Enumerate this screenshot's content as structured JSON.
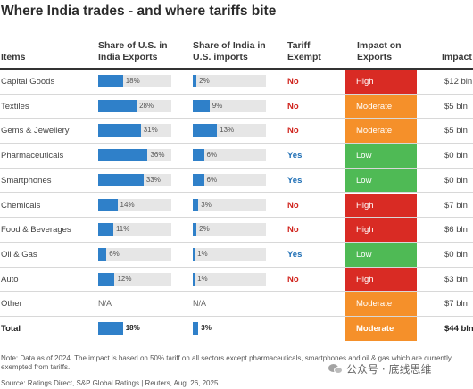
{
  "title": "Where India trades - and where tariffs bite",
  "headers": {
    "items": "Items",
    "share_us_line1": "Share of U.S. in",
    "share_us_line2": "India Exports",
    "share_in_line1": "Share of India in",
    "share_in_line2": "U.S. imports",
    "tariff_line1": "Tariff",
    "tariff_line2": "Exempt",
    "impact_line1": "Impact on",
    "impact_line2": "Exports",
    "impact_value": "Impact"
  },
  "colors": {
    "bar": "#2f80c9",
    "high": "#d92b24",
    "moderate": "#f5902a",
    "low": "#4fba55",
    "no": "#d0231c",
    "yes": "#1f6fb5"
  },
  "rows": [
    {
      "name": "Capital Goods",
      "share_us": "18%",
      "share_us_pct": 18,
      "share_in": "2%",
      "share_in_pct": 2,
      "exempt": "No",
      "impact": "High",
      "value": "$12 bln"
    },
    {
      "name": "Textiles",
      "share_us": "28%",
      "share_us_pct": 28,
      "share_in": "9%",
      "share_in_pct": 9,
      "exempt": "No",
      "impact": "Moderate",
      "value": "$5 bln"
    },
    {
      "name": "Gems & Jewellery",
      "share_us": "31%",
      "share_us_pct": 31,
      "share_in": "13%",
      "share_in_pct": 13,
      "exempt": "No",
      "impact": "Moderate",
      "value": "$5 bln"
    },
    {
      "name": "Pharmaceuticals",
      "share_us": "36%",
      "share_us_pct": 36,
      "share_in": "6%",
      "share_in_pct": 6,
      "exempt": "Yes",
      "impact": "Low",
      "value": "$0 bln"
    },
    {
      "name": "Smartphones",
      "share_us": "33%",
      "share_us_pct": 33,
      "share_in": "6%",
      "share_in_pct": 6,
      "exempt": "Yes",
      "impact": "Low",
      "value": "$0 bln"
    },
    {
      "name": "Chemicals",
      "share_us": "14%",
      "share_us_pct": 14,
      "share_in": "3%",
      "share_in_pct": 3,
      "exempt": "No",
      "impact": "High",
      "value": "$7 bln"
    },
    {
      "name": "Food & Beverages",
      "share_us": "11%",
      "share_us_pct": 11,
      "share_in": "2%",
      "share_in_pct": 2,
      "exempt": "No",
      "impact": "High",
      "value": "$6 bln"
    },
    {
      "name": "Oil & Gas",
      "share_us": "6%",
      "share_us_pct": 6,
      "share_in": "1%",
      "share_in_pct": 1,
      "exempt": "Yes",
      "impact": "Low",
      "value": "$0 bln"
    },
    {
      "name": "Auto",
      "share_us": "12%",
      "share_us_pct": 12,
      "share_in": "1%",
      "share_in_pct": 1,
      "exempt": "No",
      "impact": "High",
      "value": "$3 bln"
    },
    {
      "name": "Other",
      "share_us": "N/A",
      "share_us_pct": null,
      "share_in": "N/A",
      "share_in_pct": null,
      "exempt": "",
      "impact": "Moderate",
      "value": "$7 bln"
    },
    {
      "name": "Total",
      "share_us": "18%",
      "share_us_pct": 18,
      "share_in": "3%",
      "share_in_pct": 3,
      "exempt": "",
      "impact": "Moderate",
      "value": "$44 bln",
      "total": true
    }
  ],
  "note": "Note: Data as of 2024. The impact is based on 50% tariff on all sectors except pharmaceuticals, smartphones and oil & gas which are currently exempted from tariffs.",
  "source": "Source: Ratings Direct, S&P Global Ratings | Reuters, Aug. 26, 2025",
  "watermark": "公众号 · 底线思维"
}
